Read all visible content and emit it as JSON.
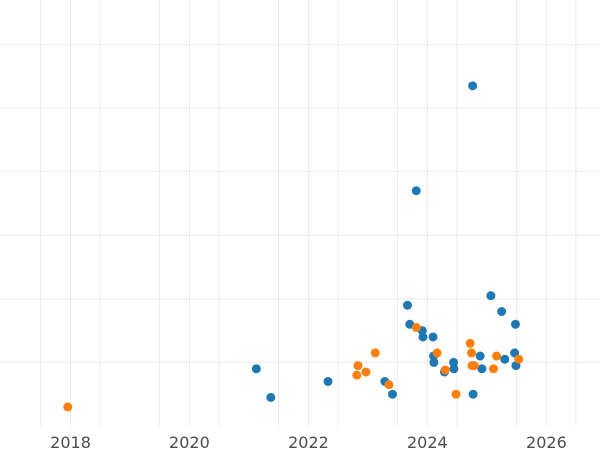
{
  "chart_data": {
    "type": "scatter",
    "title": "",
    "xlabel": "",
    "ylabel": "",
    "x_axis": {
      "kind": "date",
      "range": [
        "2016-10-25",
        "2026-11-26"
      ],
      "ticks": [
        "2018",
        "2020",
        "2022",
        "2024",
        "2026"
      ]
    },
    "y_axis": {
      "range": [
        0,
        6.7
      ],
      "tick_values": [
        1,
        2,
        3,
        4,
        5,
        6
      ],
      "tick_labels_visible": false
    },
    "grid": true,
    "legend": "none",
    "series": [
      {
        "color": "#1f77b4",
        "points": [
          {
            "x": "2021-02-15",
            "y": 0.9
          },
          {
            "x": "2021-05-15",
            "y": 0.45
          },
          {
            "x": "2022-05-01",
            "y": 0.7
          },
          {
            "x": "2023-04-15",
            "y": 0.7
          },
          {
            "x": "2023-06-01",
            "y": 0.5
          },
          {
            "x": "2023-09-01",
            "y": 1.9
          },
          {
            "x": "2023-09-15",
            "y": 1.6
          },
          {
            "x": "2023-10-25",
            "y": 3.7
          },
          {
            "x": "2023-12-01",
            "y": 1.5
          },
          {
            "x": "2023-12-05",
            "y": 1.4
          },
          {
            "x": "2024-02-05",
            "y": 1.4
          },
          {
            "x": "2024-02-08",
            "y": 1.1
          },
          {
            "x": "2024-02-10",
            "y": 1.0
          },
          {
            "x": "2024-04-15",
            "y": 0.85
          },
          {
            "x": "2024-06-10",
            "y": 1.0
          },
          {
            "x": "2024-06-12",
            "y": 0.9
          },
          {
            "x": "2024-10-05",
            "y": 5.35
          },
          {
            "x": "2024-10-08",
            "y": 0.5
          },
          {
            "x": "2024-11-20",
            "y": 1.1
          },
          {
            "x": "2024-12-01",
            "y": 0.9
          },
          {
            "x": "2025-01-25",
            "y": 2.05
          },
          {
            "x": "2025-04-01",
            "y": 1.8
          },
          {
            "x": "2025-04-20",
            "y": 1.05
          },
          {
            "x": "2025-06-20",
            "y": 1.15
          },
          {
            "x": "2025-06-25",
            "y": 1.6
          },
          {
            "x": "2025-06-28",
            "y": 0.95
          }
        ]
      },
      {
        "color": "#ff7f0e",
        "points": [
          {
            "x": "2017-12-15",
            "y": 0.3
          },
          {
            "x": "2022-10-25",
            "y": 0.8
          },
          {
            "x": "2022-11-01",
            "y": 0.95
          },
          {
            "x": "2022-12-20",
            "y": 0.85
          },
          {
            "x": "2023-02-15",
            "y": 1.15
          },
          {
            "x": "2023-05-10",
            "y": 0.65
          },
          {
            "x": "2023-10-25",
            "y": 1.55
          },
          {
            "x": "2024-03-01",
            "y": 1.15
          },
          {
            "x": "2024-04-20",
            "y": 0.88
          },
          {
            "x": "2024-06-25",
            "y": 0.5
          },
          {
            "x": "2024-09-20",
            "y": 1.3
          },
          {
            "x": "2024-09-28",
            "y": 1.15
          },
          {
            "x": "2024-10-01",
            "y": 0.95
          },
          {
            "x": "2024-10-15",
            "y": 0.95
          },
          {
            "x": "2025-02-10",
            "y": 0.9
          },
          {
            "x": "2025-03-01",
            "y": 1.1
          },
          {
            "x": "2025-07-15",
            "y": 1.05
          }
        ]
      }
    ]
  }
}
